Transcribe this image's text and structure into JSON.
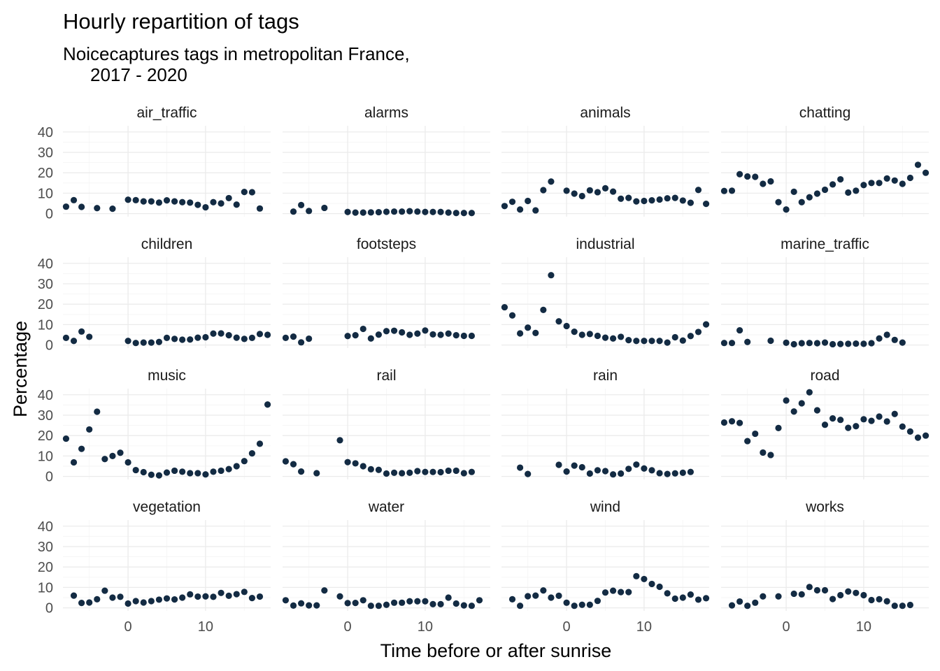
{
  "chart_data": {
    "type": "scatter",
    "title": "Hourly repartition of tags",
    "subtitle_lines": [
      "Noicecaptures tags in metropolitan France,",
      "2017 - 2020"
    ],
    "xlabel": "Time before or after sunrise",
    "ylabel": "Percentage",
    "xlim": [
      -8.4,
      18.4
    ],
    "ylim": [
      -1.5,
      43
    ],
    "x_ticks": [
      0,
      10
    ],
    "y_ticks": [
      0,
      10,
      20,
      30,
      40
    ],
    "grid": true,
    "point_color": "#132b43",
    "facets": [
      {
        "name": "air_traffic",
        "x": [
          -8,
          -7,
          -6,
          -4,
          -2,
          0,
          1,
          2,
          3,
          4,
          5,
          6,
          7,
          8,
          9,
          10,
          11,
          12,
          13,
          14,
          15,
          16,
          17
        ],
        "y": [
          3.4,
          6.6,
          3.3,
          2.7,
          2.4,
          6.8,
          6.6,
          6,
          6,
          5.4,
          6.5,
          6,
          5.6,
          5.4,
          4.3,
          3.1,
          5.6,
          5,
          7.6,
          4.4,
          10.6,
          10.5,
          2.5
        ]
      },
      {
        "name": "alarms",
        "x": [
          -7,
          -6,
          -5,
          -3,
          0,
          1,
          2,
          3,
          4,
          5,
          6,
          7,
          8,
          9,
          10,
          11,
          12,
          13,
          14,
          15,
          16
        ],
        "y": [
          1,
          4.2,
          1.3,
          2.8,
          0.8,
          0.5,
          0.5,
          0.6,
          0.7,
          0.9,
          1,
          1,
          1.2,
          1,
          0.8,
          0.8,
          0.8,
          0.5,
          0.3,
          0.3,
          0.3
        ]
      },
      {
        "name": "animals",
        "x": [
          -8,
          -7,
          -6,
          -5,
          -4,
          -3,
          -2,
          0,
          1,
          2,
          3,
          4,
          5,
          6,
          7,
          8,
          9,
          10,
          11,
          12,
          13,
          14,
          15,
          16,
          17,
          18
        ],
        "y": [
          3.7,
          5.8,
          2,
          6.2,
          1.6,
          11.5,
          15.7,
          11.2,
          9.8,
          8.6,
          11.4,
          10.5,
          12.4,
          10.8,
          7.3,
          7.7,
          6,
          6.2,
          6.5,
          6.9,
          7.5,
          7.7,
          6.4,
          5.3,
          11.6,
          4.8
        ]
      },
      {
        "name": "chatting",
        "x": [
          -8,
          -7,
          -6,
          -5,
          -4,
          -3,
          -2,
          -1,
          0,
          1,
          2,
          3,
          4,
          5,
          6,
          7,
          8,
          9,
          10,
          11,
          12,
          13,
          14,
          15,
          16,
          17,
          18
        ],
        "y": [
          11.1,
          11.2,
          19.3,
          18.2,
          18,
          14.6,
          15.8,
          5.6,
          2,
          10.7,
          5.6,
          8,
          9.8,
          11.7,
          14.3,
          16.8,
          10.3,
          11.2,
          14,
          15,
          15,
          17.2,
          16.2,
          14.6,
          17.5,
          23.9,
          20
        ]
      },
      {
        "name": "children",
        "x": [
          -8,
          -7,
          -6,
          -5,
          0,
          1,
          2,
          3,
          4,
          5,
          6,
          7,
          8,
          9,
          10,
          11,
          12,
          13,
          14,
          15,
          16,
          17,
          18
        ],
        "y": [
          3.5,
          2,
          6.6,
          4,
          2,
          1,
          1.2,
          1.2,
          1.5,
          3.5,
          3,
          2.6,
          2.7,
          3.6,
          3.8,
          5.6,
          5.7,
          4.8,
          3.6,
          3,
          3.5,
          5.4,
          5
        ]
      },
      {
        "name": "footsteps",
        "x": [
          -8,
          -7,
          -6,
          -5,
          0,
          1,
          2,
          3,
          4,
          5,
          6,
          7,
          8,
          9,
          10,
          11,
          12,
          13,
          14,
          15,
          16
        ],
        "y": [
          3.5,
          4.1,
          1.3,
          3.1,
          4.4,
          4.8,
          7.9,
          3.2,
          5.1,
          6.8,
          7,
          6.2,
          5,
          5.6,
          7.1,
          5.2,
          5,
          5.6,
          4.8,
          4.5,
          4.5
        ]
      },
      {
        "name": "industrial",
        "x": [
          -8,
          -7,
          -6,
          -5,
          -4,
          -3,
          -2,
          -1,
          0,
          1,
          2,
          3,
          4,
          5,
          6,
          7,
          8,
          9,
          10,
          11,
          12,
          13,
          14,
          15,
          16,
          17,
          18
        ],
        "y": [
          18.5,
          14.5,
          5.7,
          8.5,
          5.9,
          17.2,
          34.2,
          11.6,
          9.3,
          6.5,
          5,
          5.4,
          4.5,
          3.6,
          3.2,
          4,
          2.4,
          2,
          2,
          2,
          2,
          1.2,
          3.8,
          2.2,
          4.4,
          6.4,
          10.1
        ]
      },
      {
        "name": "marine_traffic",
        "x": [
          -8,
          -7,
          -6,
          -5,
          -2,
          0,
          1,
          2,
          3,
          4,
          5,
          6,
          7,
          8,
          9,
          10,
          11,
          12,
          13,
          14,
          15
        ],
        "y": [
          1,
          1,
          7.2,
          1.5,
          2.1,
          1.1,
          0.4,
          0.9,
          1,
          0.9,
          1.2,
          0.4,
          0.5,
          0.6,
          0.7,
          0.6,
          0.9,
          3.2,
          5,
          2.5,
          1.2
        ]
      },
      {
        "name": "music",
        "x": [
          -8,
          -7,
          -6,
          -5,
          -4,
          -3,
          -2,
          -1,
          0,
          1,
          2,
          3,
          4,
          5,
          6,
          7,
          8,
          9,
          10,
          11,
          12,
          13,
          14,
          15,
          16,
          17,
          18
        ],
        "y": [
          18.5,
          6.9,
          13.5,
          23,
          31.7,
          8.5,
          10,
          11.6,
          6.9,
          3.1,
          2.1,
          0.8,
          0.5,
          1.9,
          2.8,
          2.3,
          1.6,
          1.6,
          1,
          2.3,
          2.8,
          3.6,
          5,
          7.5,
          11.3,
          16,
          35.2
        ]
      },
      {
        "name": "rail",
        "x": [
          -8,
          -7,
          -6,
          -4,
          -1,
          0,
          1,
          2,
          3,
          4,
          5,
          6,
          7,
          8,
          9,
          10,
          11,
          12,
          13,
          14,
          15,
          16
        ],
        "y": [
          7.4,
          6,
          2.4,
          1.6,
          17.7,
          7,
          6.4,
          5,
          3.5,
          3.2,
          1.4,
          1.8,
          1.6,
          1.8,
          2.6,
          2.2,
          2.2,
          2.1,
          2.8,
          2.8,
          1.6,
          2.2
        ]
      },
      {
        "name": "rain",
        "x": [
          -6,
          -5,
          -1,
          0,
          1,
          2,
          3,
          4,
          5,
          6,
          7,
          8,
          9,
          10,
          11,
          12,
          13,
          14,
          15,
          16
        ],
        "y": [
          4.3,
          1.2,
          5.7,
          2.4,
          5.3,
          4.5,
          1.4,
          3,
          2.6,
          1,
          1.4,
          3.7,
          5.8,
          3.9,
          3,
          1.6,
          1.2,
          1.5,
          1.8,
          2.2
        ]
      },
      {
        "name": "road",
        "x": [
          -8,
          -7,
          -6,
          -5,
          -4,
          -3,
          -2,
          -1,
          0,
          1,
          2,
          3,
          4,
          5,
          6,
          7,
          8,
          9,
          10,
          11,
          12,
          13,
          14,
          15,
          16,
          17,
          18
        ],
        "y": [
          26.4,
          27,
          26.2,
          17.3,
          20.9,
          11.7,
          10.5,
          23.7,
          37.2,
          31.8,
          35.8,
          41.2,
          32.4,
          25.3,
          28.4,
          27.7,
          23.8,
          24.6,
          28,
          27.2,
          29.3,
          26.9,
          30.6,
          24.4,
          22,
          19,
          20
        ]
      },
      {
        "name": "vegetation",
        "x": [
          -7,
          -6,
          -5,
          -4,
          -3,
          -2,
          -1,
          0,
          1,
          2,
          3,
          4,
          5,
          6,
          7,
          8,
          9,
          10,
          11,
          12,
          13,
          14,
          15,
          16,
          17
        ],
        "y": [
          6,
          2.4,
          2.6,
          4.2,
          8.4,
          5,
          5.4,
          2.1,
          3.3,
          2.6,
          3.3,
          4,
          4.6,
          4.1,
          5,
          6.6,
          5.5,
          5.6,
          5.4,
          7.3,
          5.9,
          6.7,
          7.8,
          4.8,
          5.5
        ]
      },
      {
        "name": "water",
        "x": [
          -8,
          -7,
          -6,
          -5,
          -4,
          -3,
          -1,
          0,
          1,
          2,
          3,
          4,
          5,
          6,
          7,
          8,
          9,
          10,
          11,
          12,
          13,
          14,
          15,
          16,
          17
        ],
        "y": [
          3.7,
          1.1,
          2.2,
          1.2,
          1.2,
          8.5,
          5.6,
          2.3,
          2.4,
          3.7,
          1,
          1,
          1.5,
          2.5,
          2.5,
          3.2,
          3.2,
          3.2,
          1.8,
          1.8,
          5,
          2.1,
          1.2,
          1,
          3.7
        ]
      },
      {
        "name": "wind",
        "x": [
          -7,
          -6,
          -5,
          -4,
          -3,
          -2,
          -1,
          0,
          1,
          2,
          3,
          4,
          5,
          6,
          7,
          8,
          9,
          10,
          11,
          12,
          13,
          14,
          15,
          16,
          17,
          18
        ],
        "y": [
          4.2,
          1,
          5.7,
          6,
          8.5,
          5,
          5.9,
          2.5,
          1,
          1.5,
          1.5,
          3.4,
          7.5,
          8.4,
          7.7,
          7.7,
          15.5,
          14.1,
          11.7,
          10.3,
          7.1,
          4.5,
          5,
          6.5,
          4,
          4.7
        ]
      },
      {
        "name": "works",
        "x": [
          -7,
          -6,
          -5,
          -4,
          -3,
          -1,
          1,
          2,
          3,
          4,
          5,
          6,
          7,
          8,
          9,
          10,
          11,
          12,
          13,
          14,
          15,
          16
        ],
        "y": [
          1.2,
          3.1,
          1,
          2.5,
          5.6,
          5.6,
          6.9,
          6.6,
          10.2,
          8.6,
          8.6,
          4.3,
          6.2,
          8,
          7.3,
          6.2,
          3.8,
          4.2,
          3.2,
          1,
          1,
          1.4
        ]
      }
    ]
  }
}
